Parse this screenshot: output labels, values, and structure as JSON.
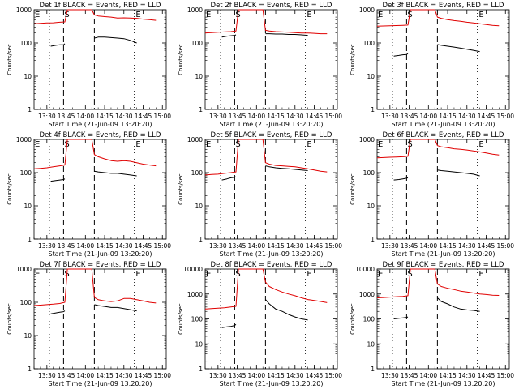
{
  "colors": {
    "events": "#000000",
    "lld": "#e00000",
    "background": "#ffffff"
  },
  "chart_data": [
    {
      "type": "line",
      "title": "Det 1f BLACK = Events, RED = LLD",
      "xlabel": "Start Time (21-Jun-09 13:20:20)",
      "ylabel": "Counts/sec",
      "x_ticks": [
        "13:30",
        "13:45",
        "14:00",
        "14:15",
        "14:30",
        "14:45",
        "15:00"
      ],
      "y_ticks": [
        "1",
        "10",
        "100",
        "1000"
      ],
      "ylim": [
        1,
        1000
      ],
      "y_scale": "log",
      "markers": [
        "E",
        "S",
        "E"
      ],
      "series": [
        {
          "name": "Events",
          "color": "#000000",
          "x": [
            "13:33",
            "13:37",
            "13:40",
            "13:43",
            "13:44",
            "13:46",
            "14:06",
            "14:07",
            "14:10",
            "14:15",
            "14:20",
            "14:25",
            "14:30",
            "14:35",
            "14:40"
          ],
          "values": [
            80,
            85,
            88,
            88,
            95,
            null,
            null,
            140,
            150,
            150,
            145,
            140,
            135,
            120,
            100
          ]
        },
        {
          "name": "LLD",
          "color": "#e00000",
          "x": [
            "13:20",
            "13:25",
            "13:30",
            "13:35",
            "13:40",
            "13:44",
            "13:46",
            "13:55",
            "14:05",
            "14:07",
            "14:10",
            "14:15",
            "14:20",
            "14:25",
            "14:30",
            "14:35",
            "14:40",
            "14:45",
            "14:50",
            "14:55"
          ],
          "values": [
            380,
            390,
            400,
            405,
            420,
            430,
            1000,
            1000,
            1000,
            700,
            650,
            620,
            600,
            560,
            570,
            560,
            550,
            520,
            500,
            480
          ]
        }
      ]
    },
    {
      "type": "line",
      "title": "Det 2f BLACK = Events, RED = LLD",
      "xlabel": "Start Time (21-Jun-09 13:20:20)",
      "ylabel": "Counts/sec",
      "x_ticks": [
        "13:30",
        "13:45",
        "14:00",
        "14:15",
        "14:30",
        "14:45",
        "15:00"
      ],
      "y_ticks": [
        "1",
        "10",
        "100",
        "1000"
      ],
      "ylim": [
        1,
        1000
      ],
      "y_scale": "log",
      "markers": [
        "E",
        "S",
        "E"
      ],
      "series": [
        {
          "name": "Events",
          "color": "#000000",
          "x": [
            "13:33",
            "13:37",
            "13:40",
            "13:43",
            "13:44",
            "13:46",
            "14:06",
            "14:07",
            "14:10",
            "14:15",
            "14:20",
            "14:25",
            "14:30",
            "14:35",
            "14:40"
          ],
          "values": [
            150,
            160,
            165,
            170,
            175,
            null,
            null,
            190,
            190,
            185,
            185,
            180,
            180,
            175,
            170
          ]
        },
        {
          "name": "LLD",
          "color": "#e00000",
          "x": [
            "13:20",
            "13:25",
            "13:30",
            "13:35",
            "13:40",
            "13:44",
            "13:46",
            "13:55",
            "14:05",
            "14:07",
            "14:10",
            "14:15",
            "14:20",
            "14:25",
            "14:30",
            "14:35",
            "14:40",
            "14:45",
            "14:50",
            "14:55"
          ],
          "values": [
            200,
            205,
            210,
            215,
            220,
            230,
            1000,
            1000,
            1000,
            240,
            230,
            220,
            215,
            210,
            205,
            200,
            200,
            195,
            190,
            190
          ]
        }
      ]
    },
    {
      "type": "line",
      "title": "Det 3f BLACK = Events, RED = LLD",
      "xlabel": "Start Time (21-Jun-09 13:20:20)",
      "ylabel": "Counts/sec",
      "x_ticks": [
        "13:30",
        "13:45",
        "14:00",
        "14:15",
        "14:30",
        "14:45",
        "15:00"
      ],
      "y_ticks": [
        "1",
        "10",
        "100",
        "1000"
      ],
      "ylim": [
        1,
        1000
      ],
      "y_scale": "log",
      "markers": [
        "E",
        "S",
        "E"
      ],
      "series": [
        {
          "name": "Events",
          "color": "#000000",
          "x": [
            "13:33",
            "13:37",
            "13:40",
            "13:43",
            "13:44",
            "13:46",
            "14:06",
            "14:07",
            "14:10",
            "14:15",
            "14:20",
            "14:25",
            "14:30",
            "14:35",
            "14:40"
          ],
          "values": [
            40,
            42,
            44,
            45,
            48,
            null,
            null,
            90,
            85,
            80,
            75,
            70,
            65,
            60,
            55
          ]
        },
        {
          "name": "LLD",
          "color": "#e00000",
          "x": [
            "13:20",
            "13:25",
            "13:30",
            "13:35",
            "13:40",
            "13:44",
            "13:46",
            "13:55",
            "14:05",
            "14:07",
            "14:10",
            "14:15",
            "14:20",
            "14:25",
            "14:30",
            "14:35",
            "14:40",
            "14:45",
            "14:50",
            "14:55"
          ],
          "values": [
            320,
            325,
            330,
            335,
            340,
            345,
            1000,
            1000,
            1000,
            600,
            550,
            500,
            470,
            450,
            420,
            400,
            380,
            360,
            340,
            330
          ]
        }
      ]
    },
    {
      "type": "line",
      "title": "Det 4f BLACK = Events, RED = LLD",
      "xlabel": "Start Time (21-Jun-09 13:20:20)",
      "ylabel": "Counts/sec",
      "x_ticks": [
        "13:30",
        "13:45",
        "14:00",
        "14:15",
        "14:30",
        "14:45",
        "15:00"
      ],
      "y_ticks": [
        "1",
        "10",
        "100",
        "1000"
      ],
      "ylim": [
        1,
        1000
      ],
      "y_scale": "log",
      "markers": [
        "E",
        "S",
        "E"
      ],
      "series": [
        {
          "name": "Events",
          "color": "#000000",
          "x": [
            "13:33",
            "13:37",
            "13:40",
            "13:43",
            "13:44",
            "13:46",
            "14:06",
            "14:07",
            "14:10",
            "14:15",
            "14:20",
            "14:25",
            "14:30",
            "14:35",
            "14:40"
          ],
          "values": [
            55,
            58,
            60,
            62,
            65,
            null,
            null,
            110,
            105,
            100,
            95,
            95,
            90,
            85,
            80
          ]
        },
        {
          "name": "LLD",
          "color": "#e00000",
          "x": [
            "13:20",
            "13:25",
            "13:30",
            "13:35",
            "13:40",
            "13:44",
            "13:46",
            "13:55",
            "14:05",
            "14:07",
            "14:10",
            "14:15",
            "14:20",
            "14:25",
            "14:30",
            "14:35",
            "14:40",
            "14:45",
            "14:50",
            "14:55"
          ],
          "values": [
            130,
            135,
            140,
            150,
            160,
            170,
            1000,
            1000,
            1000,
            350,
            300,
            260,
            230,
            220,
            230,
            220,
            200,
            180,
            170,
            160
          ]
        }
      ]
    },
    {
      "type": "line",
      "title": "Det 5f BLACK = Events, RED = LLD",
      "xlabel": "Start Time (21-Jun-09 13:20:20)",
      "ylabel": "Counts/sec",
      "x_ticks": [
        "13:30",
        "13:45",
        "14:00",
        "14:15",
        "14:30",
        "14:45",
        "15:00"
      ],
      "y_ticks": [
        "1",
        "10",
        "100",
        "1000"
      ],
      "ylim": [
        1,
        1000
      ],
      "y_scale": "log",
      "markers": [
        "E",
        "S",
        "E"
      ],
      "series": [
        {
          "name": "Events",
          "color": "#000000",
          "x": [
            "13:33",
            "13:37",
            "13:40",
            "13:43",
            "13:44",
            "13:46",
            "14:06",
            "14:07",
            "14:10",
            "14:15",
            "14:20",
            "14:25",
            "14:30",
            "14:35",
            "14:40"
          ],
          "values": [
            60,
            65,
            70,
            72,
            75,
            null,
            null,
            160,
            150,
            140,
            135,
            130,
            125,
            120,
            115
          ]
        },
        {
          "name": "LLD",
          "color": "#e00000",
          "x": [
            "13:20",
            "13:25",
            "13:30",
            "13:35",
            "13:40",
            "13:44",
            "13:46",
            "13:55",
            "14:05",
            "14:07",
            "14:10",
            "14:15",
            "14:20",
            "14:25",
            "14:30",
            "14:35",
            "14:40",
            "14:45",
            "14:50",
            "14:55"
          ],
          "values": [
            85,
            88,
            90,
            95,
            100,
            105,
            1000,
            1000,
            1000,
            200,
            180,
            165,
            160,
            155,
            150,
            140,
            130,
            120,
            110,
            105
          ]
        }
      ]
    },
    {
      "type": "line",
      "title": "Det 6f BLACK = Events, RED = LLD",
      "xlabel": "Start Time (21-Jun-09 13:20:20)",
      "ylabel": "Counts/sec",
      "x_ticks": [
        "13:30",
        "13:45",
        "14:00",
        "14:15",
        "14:30",
        "14:45",
        "15:00"
      ],
      "y_ticks": [
        "1",
        "10",
        "100",
        "1000"
      ],
      "ylim": [
        1,
        1000
      ],
      "y_scale": "log",
      "markers": [
        "E",
        "S",
        "E"
      ],
      "series": [
        {
          "name": "Events",
          "color": "#000000",
          "x": [
            "13:33",
            "13:37",
            "13:40",
            "13:43",
            "13:44",
            "13:46",
            "14:06",
            "14:07",
            "14:10",
            "14:15",
            "14:20",
            "14:25",
            "14:30",
            "14:35",
            "14:40"
          ],
          "values": [
            60,
            62,
            65,
            68,
            70,
            null,
            null,
            120,
            115,
            110,
            105,
            100,
            95,
            90,
            80
          ]
        },
        {
          "name": "LLD",
          "color": "#e00000",
          "x": [
            "13:20",
            "13:25",
            "13:30",
            "13:35",
            "13:40",
            "13:44",
            "13:46",
            "13:55",
            "14:05",
            "14:07",
            "14:10",
            "14:15",
            "14:20",
            "14:25",
            "14:30",
            "14:35",
            "14:40",
            "14:45",
            "14:50",
            "14:55"
          ],
          "values": [
            280,
            285,
            290,
            295,
            300,
            310,
            1000,
            1000,
            1000,
            650,
            600,
            560,
            520,
            500,
            480,
            450,
            420,
            390,
            360,
            340
          ]
        }
      ]
    },
    {
      "type": "line",
      "title": "Det 7f BLACK = Events, RED = LLD",
      "xlabel": "Start Time (21-Jun-09 13:20:20)",
      "ylabel": "Counts/sec",
      "x_ticks": [
        "13:30",
        "13:45",
        "14:00",
        "14:15",
        "14:30",
        "14:45",
        "15:00"
      ],
      "y_ticks": [
        "1",
        "10",
        "100",
        "1000"
      ],
      "ylim": [
        1,
        1000
      ],
      "y_scale": "log",
      "markers": [
        "E",
        "S",
        "E"
      ],
      "series": [
        {
          "name": "Events",
          "color": "#000000",
          "x": [
            "13:33",
            "13:37",
            "13:40",
            "13:43",
            "13:44",
            "13:46",
            "14:06",
            "14:07",
            "14:10",
            "14:15",
            "14:20",
            "14:25",
            "14:30",
            "14:35",
            "14:40"
          ],
          "values": [
            45,
            48,
            50,
            52,
            55,
            null,
            null,
            85,
            80,
            75,
            70,
            70,
            65,
            60,
            55
          ]
        },
        {
          "name": "LLD",
          "color": "#e00000",
          "x": [
            "13:20",
            "13:25",
            "13:30",
            "13:35",
            "13:40",
            "13:44",
            "13:46",
            "13:55",
            "14:05",
            "14:07",
            "14:10",
            "14:15",
            "14:20",
            "14:25",
            "14:30",
            "14:35",
            "14:40",
            "14:45",
            "14:50",
            "14:55"
          ],
          "values": [
            80,
            82,
            85,
            88,
            92,
            100,
            1000,
            1000,
            1000,
            140,
            120,
            110,
            105,
            110,
            130,
            130,
            120,
            110,
            100,
            95
          ]
        }
      ]
    },
    {
      "type": "line",
      "title": "Det 8f BLACK = Events, RED = LLD",
      "xlabel": "Start Time (21-Jun-09 13:20:20)",
      "ylabel": "Counts/sec",
      "x_ticks": [
        "13:30",
        "13:45",
        "14:00",
        "14:15",
        "14:30",
        "14:45",
        "15:00"
      ],
      "y_ticks": [
        "1",
        "10",
        "100",
        "1000",
        "10000"
      ],
      "ylim": [
        1,
        10000
      ],
      "y_scale": "log",
      "markers": [
        "E",
        "S",
        "E"
      ],
      "series": [
        {
          "name": "Events",
          "color": "#000000",
          "x": [
            "13:33",
            "13:37",
            "13:40",
            "13:43",
            "13:44",
            "13:46",
            "14:06",
            "14:07",
            "14:10",
            "14:15",
            "14:20",
            "14:25",
            "14:30",
            "14:35",
            "14:40"
          ],
          "values": [
            45,
            48,
            50,
            55,
            60,
            null,
            null,
            600,
            400,
            250,
            200,
            150,
            120,
            100,
            90
          ]
        },
        {
          "name": "LLD",
          "color": "#e00000",
          "x": [
            "13:20",
            "13:25",
            "13:30",
            "13:35",
            "13:40",
            "13:44",
            "13:46",
            "13:55",
            "14:05",
            "14:07",
            "14:10",
            "14:15",
            "14:20",
            "14:25",
            "14:30",
            "14:35",
            "14:40",
            "14:45",
            "14:50",
            "14:55"
          ],
          "values": [
            250,
            260,
            270,
            280,
            300,
            320,
            10000,
            10000,
            10000,
            3000,
            2000,
            1500,
            1200,
            1000,
            850,
            700,
            600,
            550,
            500,
            450
          ]
        }
      ]
    },
    {
      "type": "line",
      "title": "Det 9f BLACK = Events, RED = LLD",
      "xlabel": "Start Time (21-Jun-09 13:20:20)",
      "ylabel": "Counts/sec",
      "x_ticks": [
        "13:30",
        "13:45",
        "14:00",
        "14:15",
        "14:30",
        "14:45",
        "15:00"
      ],
      "y_ticks": [
        "1",
        "10",
        "100",
        "1000",
        "10000"
      ],
      "ylim": [
        1,
        10000
      ],
      "y_scale": "log",
      "markers": [
        "E",
        "S",
        "E"
      ],
      "series": [
        {
          "name": "Events",
          "color": "#000000",
          "x": [
            "13:33",
            "13:37",
            "13:40",
            "13:43",
            "13:44",
            "13:46",
            "14:06",
            "14:07",
            "14:10",
            "14:15",
            "14:20",
            "14:25",
            "14:30",
            "14:35",
            "14:40"
          ],
          "values": [
            100,
            105,
            110,
            115,
            120,
            null,
            null,
            700,
            500,
            400,
            300,
            250,
            230,
            220,
            200
          ]
        },
        {
          "name": "LLD",
          "color": "#e00000",
          "x": [
            "13:20",
            "13:25",
            "13:30",
            "13:35",
            "13:40",
            "13:44",
            "13:46",
            "13:55",
            "14:05",
            "14:07",
            "14:10",
            "14:15",
            "14:20",
            "14:25",
            "14:30",
            "14:35",
            "14:40",
            "14:45",
            "14:50",
            "14:55"
          ],
          "values": [
            700,
            720,
            750,
            780,
            800,
            850,
            10000,
            10000,
            10000,
            2500,
            2000,
            1700,
            1500,
            1300,
            1200,
            1100,
            1000,
            950,
            900,
            880
          ]
        }
      ]
    }
  ]
}
